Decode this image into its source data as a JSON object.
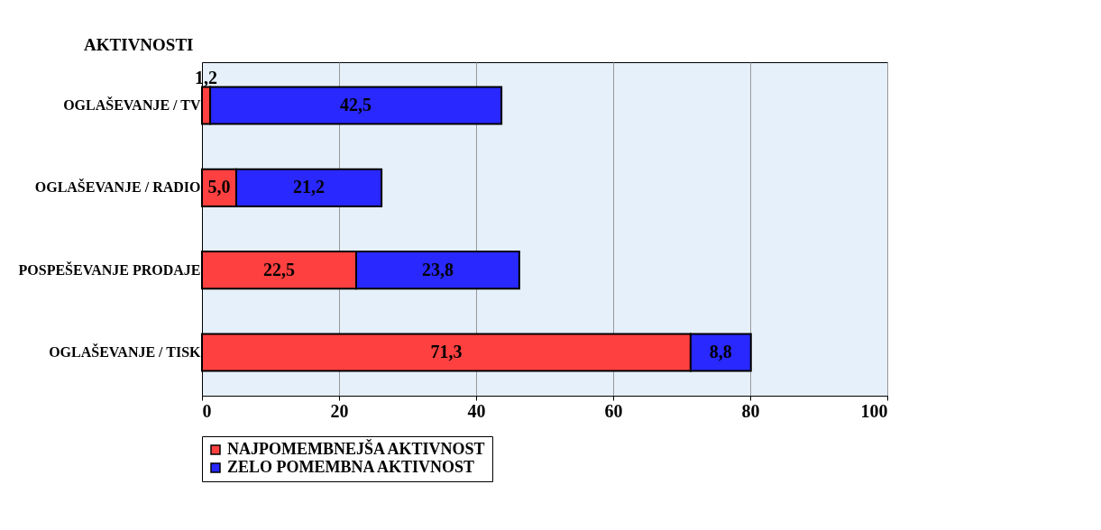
{
  "chart_data": {
    "type": "bar",
    "orientation": "horizontal",
    "stacked": true,
    "ylabel": "AKTIVNOSTI",
    "categories": [
      "OGLAŠEVANJE / TV",
      "OGLAŠEVANJE / RADIO",
      "POSPEŠEVANJE PRODAJE",
      "OGLAŠEVANJE / TISK"
    ],
    "series": [
      {
        "name": "NAJPOMEMBNEJŠA AKTIVNOST",
        "color": "#ff4040",
        "values": [
          1.2,
          5.0,
          22.5,
          71.3
        ],
        "value_labels": [
          "1,2",
          "5,0",
          "22,5",
          "71,3"
        ]
      },
      {
        "name": "ZELO POMEMBNA AKTIVNOST",
        "color": "#2828ff",
        "values": [
          42.5,
          21.2,
          23.8,
          8.8
        ],
        "value_labels": [
          "42,5",
          "21,2",
          "23,8",
          "8,8"
        ]
      }
    ],
    "xlim": [
      0,
      100
    ],
    "xticks": [
      0,
      20,
      40,
      60,
      80,
      100
    ],
    "grid": "x",
    "legend": "bottom"
  }
}
